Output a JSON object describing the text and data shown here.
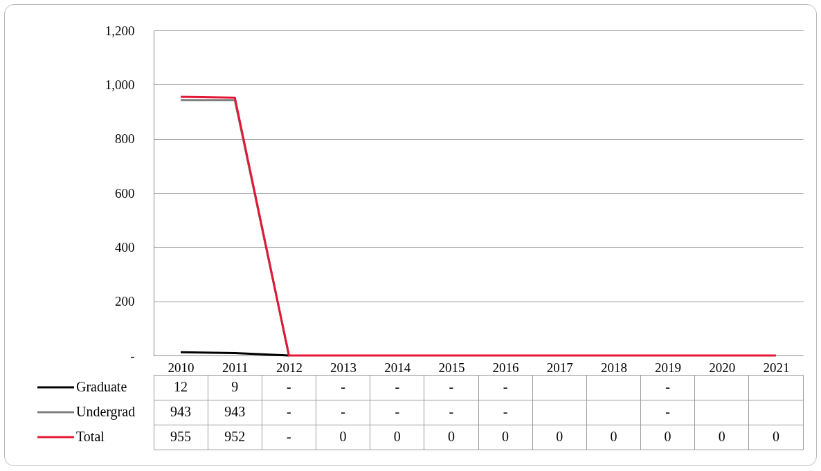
{
  "chart_data": {
    "type": "line",
    "categories": [
      "2010",
      "2011",
      "2012",
      "2013",
      "2014",
      "2015",
      "2016",
      "2017",
      "2018",
      "2019",
      "2020",
      "2021"
    ],
    "series": [
      {
        "name": "Graduate",
        "color": "#000000",
        "values": [
          12,
          9,
          0,
          null,
          null,
          null,
          null,
          null,
          null,
          null,
          null,
          null
        ],
        "value_labels": [
          "12",
          "9",
          "-",
          "-",
          "-",
          "-",
          "-",
          null,
          null,
          "-",
          null,
          null
        ]
      },
      {
        "name": "Undergrad",
        "color": "#7f7f7f",
        "values": [
          943,
          943,
          0,
          null,
          null,
          null,
          null,
          null,
          null,
          null,
          null,
          null
        ],
        "value_labels": [
          "943",
          "943",
          "-",
          "-",
          "-",
          "-",
          "-",
          null,
          null,
          "-",
          null,
          null
        ]
      },
      {
        "name": "Total",
        "color": "#e31837",
        "values": [
          955,
          952,
          0,
          0,
          0,
          0,
          0,
          0,
          0,
          0,
          0,
          0
        ],
        "value_labels": [
          "955",
          "952",
          "-",
          "0",
          "0",
          "0",
          "0",
          "0",
          "0",
          "0",
          "0",
          "0"
        ]
      }
    ],
    "ylim": [
      0,
      1200
    ],
    "yticks": [
      {
        "value": 0,
        "label": "-"
      },
      200,
      400,
      600,
      800,
      {
        "value": 1000,
        "label": "1,000"
      },
      {
        "value": 1200,
        "label": "1,200"
      }
    ],
    "grid": "y",
    "legend": "bottom",
    "line_style": "solid",
    "marker": "none"
  }
}
